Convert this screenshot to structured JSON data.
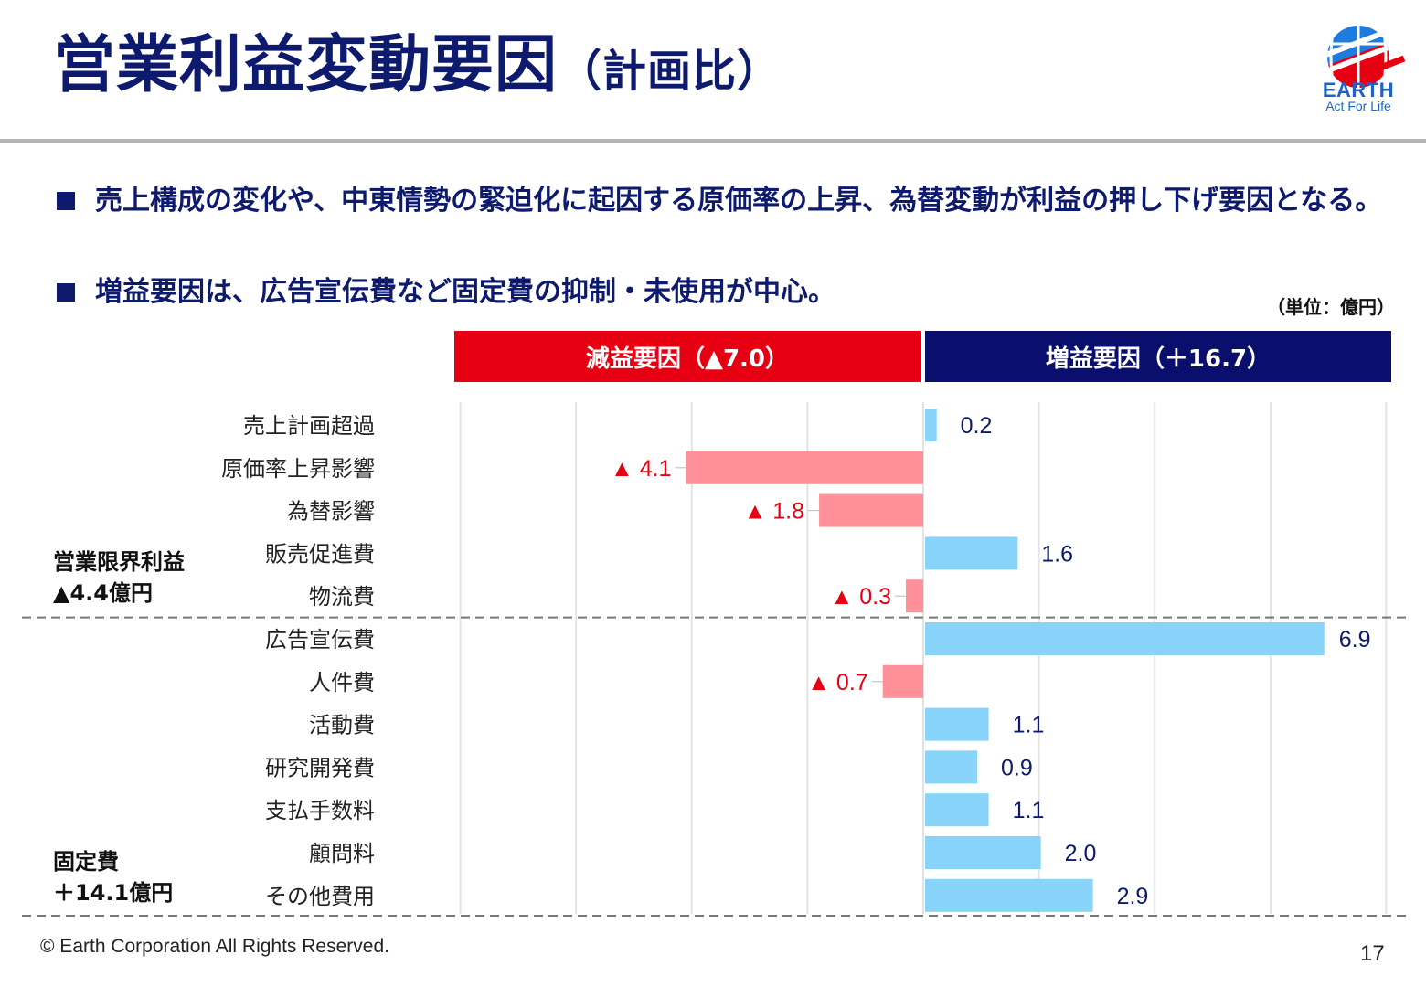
{
  "title": {
    "main": "営業利益変動要因",
    "sub": "（計画比）"
  },
  "logo": {
    "name": "EARTH",
    "tagline": "Act For Life"
  },
  "bullets": [
    "売上構成の変化や、中東情勢の緊迫化に起因する原価率の上昇、為替変動が利益の押し下げ要因となる。",
    "増益要因は、広告宣伝費など固定費の抑制・未使用が中心。"
  ],
  "unit_note": "（単位：億円）",
  "bands": {
    "decrease": "減益要因（▲7.0）",
    "increase": "増益要因（＋16.7）"
  },
  "groups": {
    "variable": {
      "line1": "営業限界利益",
      "line2": "▲4.4億円"
    },
    "fixed": {
      "line1": "固定費",
      "line2": "＋14.1億円"
    }
  },
  "chart_data": {
    "type": "bar",
    "orientation": "horizontal",
    "categories": [
      "売上計画超過",
      "原価率上昇影響",
      "為替影響",
      "販売促進費",
      "物流費",
      "広告宣伝費",
      "人件費",
      "活動費",
      "研究開発費",
      "支払手数料",
      "顧問料",
      "その他費用"
    ],
    "values": [
      0.2,
      -4.1,
      -1.8,
      1.6,
      -0.3,
      6.9,
      -0.7,
      1.1,
      0.9,
      1.1,
      2.0,
      2.9
    ],
    "labels": [
      "0.2",
      "▲ 4.1",
      "▲ 1.8",
      "1.6",
      "▲ 0.3",
      "6.9",
      "▲ 0.7",
      "1.1",
      "0.9",
      "1.1",
      "2.0",
      "2.9"
    ],
    "xlim": [
      -8,
      8
    ],
    "grid": true,
    "colors": {
      "negative": "#ff8f99",
      "positive": "#87d3fa",
      "negative_label": "#e60012",
      "positive_label": "#0d1a6e"
    }
  },
  "footer": {
    "copyright": "© Earth Corporation   All Rights Reserved.",
    "page": "17"
  }
}
